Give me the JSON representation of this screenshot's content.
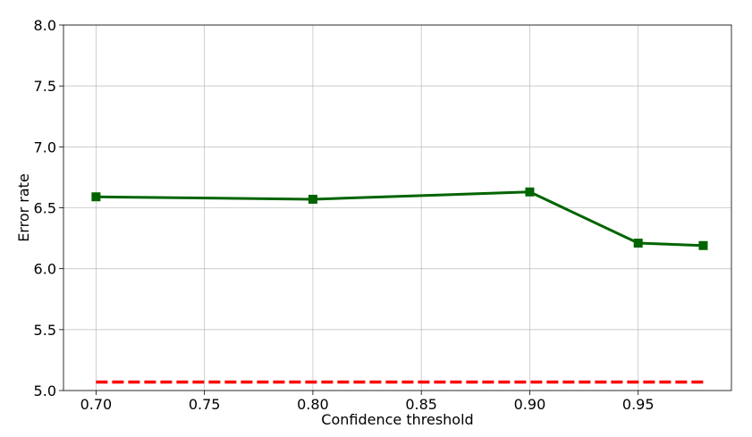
{
  "chart_data": {
    "type": "line",
    "xlabel": "Confidence threshold",
    "ylabel": "Error rate",
    "xlim": [
      0.685,
      0.993
    ],
    "ylim": [
      5.0,
      8.0
    ],
    "xticks": [
      "0.70",
      "0.75",
      "0.80",
      "0.85",
      "0.90",
      "0.95"
    ],
    "xtick_values": [
      0.7,
      0.75,
      0.8,
      0.85,
      0.9,
      0.95
    ],
    "yticks": [
      "5.0",
      "5.5",
      "6.0",
      "6.5",
      "7.0",
      "7.5",
      "8.0"
    ],
    "ytick_values": [
      5.0,
      5.5,
      6.0,
      6.5,
      7.0,
      7.5,
      8.0
    ],
    "grid": true,
    "series": [
      {
        "x": [
          0.7,
          0.8,
          0.9,
          0.95,
          0.98
        ],
        "y": [
          6.59,
          6.57,
          6.63,
          6.21,
          6.19
        ],
        "color": "#006400",
        "marker": "square",
        "style": "solid"
      },
      {
        "x": [
          0.7,
          0.98
        ],
        "y": [
          5.07,
          5.07
        ],
        "color": "#ff0000",
        "marker": "none",
        "style": "dashed"
      }
    ]
  }
}
